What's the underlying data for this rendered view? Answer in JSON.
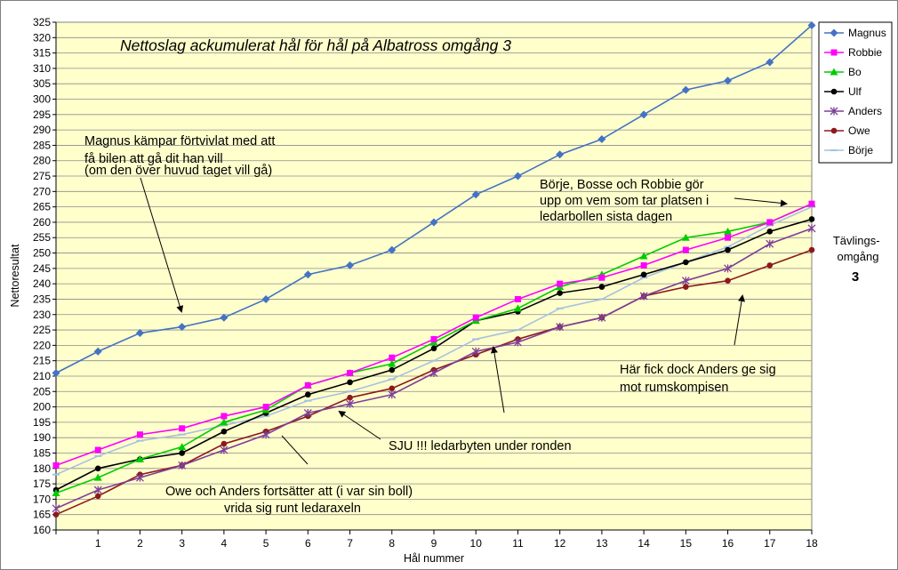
{
  "chart_data": {
    "type": "line",
    "title": "Nettoslag ackumulerat hål för hål på Albatross omgång 3",
    "xlabel": "Hål nummer",
    "ylabel": "Nettoresultat",
    "x": [
      0,
      1,
      2,
      3,
      4,
      5,
      6,
      7,
      8,
      9,
      10,
      11,
      12,
      13,
      14,
      15,
      16,
      17,
      18
    ],
    "x_tick_labels": [
      "1",
      "2",
      "3",
      "4",
      "5",
      "6",
      "7",
      "8",
      "9",
      "10",
      "11",
      "12",
      "13",
      "14",
      "15",
      "16",
      "17",
      "18"
    ],
    "xlim": [
      0,
      18
    ],
    "ylim": [
      160,
      325
    ],
    "y_tick_step": 5,
    "grid": "horizontal",
    "legend_position": "right",
    "series": [
      {
        "name": "Magnus",
        "color": "#4472C4",
        "marker": "diamond",
        "values": [
          211,
          218,
          224,
          226,
          229,
          235,
          243,
          246,
          251,
          260,
          269,
          275,
          282,
          287,
          295,
          303,
          306,
          312,
          324
        ]
      },
      {
        "name": "Robbie",
        "color": "#FF00FF",
        "marker": "square",
        "values": [
          181,
          186,
          191,
          193,
          197,
          200,
          207,
          211,
          216,
          222,
          229,
          235,
          240,
          242,
          246,
          251,
          255,
          260,
          266
        ]
      },
      {
        "name": "Bo",
        "color": "#00CC00",
        "marker": "triangle",
        "values": [
          172,
          177,
          183,
          187,
          195,
          199,
          207,
          211,
          214,
          221,
          228,
          232,
          239,
          243,
          249,
          255,
          257,
          260,
          266
        ]
      },
      {
        "name": "Ulf",
        "color": "#000000",
        "marker": "circle",
        "values": [
          173,
          180,
          183,
          185,
          192,
          198,
          204,
          208,
          212,
          219,
          228,
          231,
          237,
          239,
          243,
          247,
          251,
          257,
          261
        ]
      },
      {
        "name": "Anders",
        "color": "#7F3F98",
        "marker": "star",
        "values": [
          167,
          173,
          177,
          181,
          186,
          191,
          198,
          201,
          204,
          211,
          218,
          221,
          226,
          229,
          236,
          241,
          245,
          253,
          258
        ]
      },
      {
        "name": "Owe",
        "color": "#8B1A1A",
        "marker": "circle",
        "values": [
          165,
          171,
          178,
          181,
          188,
          192,
          197,
          203,
          206,
          212,
          217,
          222,
          226,
          229,
          236,
          239,
          241,
          246,
          251
        ]
      },
      {
        "name": "Börje",
        "color": "#A6C1E0",
        "marker": "dash",
        "values": [
          178,
          184,
          189,
          191,
          194,
          197,
          202,
          205,
          209,
          215,
          222,
          225,
          232,
          235,
          242,
          247,
          252,
          259,
          265
        ]
      }
    ],
    "annotations": [
      {
        "id": "magnus",
        "lines": [
          "Magnus kämpar förtvivlat med att",
          "få bilen att gå dit han vill",
          "(om den över huvud taget vill gå)"
        ]
      },
      {
        "id": "borje",
        "lines": [
          "Börje, Bosse och Robbie gör",
          "upp om vem som tar platsen i",
          "ledarbollen sista dagen"
        ]
      },
      {
        "id": "anders",
        "lines": [
          "Här fick dock Anders ge sig",
          "mot rumskompisen"
        ]
      },
      {
        "id": "sju",
        "lines": [
          "SJU !!! ledarbyten under ronden"
        ]
      },
      {
        "id": "owe",
        "lines": [
          "Owe och Anders fortsätter att (i var sin boll)",
          "vrida sig runt ledaraxeln"
        ]
      }
    ],
    "round_label": {
      "lines": [
        "Tävlings-",
        "omgång"
      ],
      "value": "3"
    }
  }
}
